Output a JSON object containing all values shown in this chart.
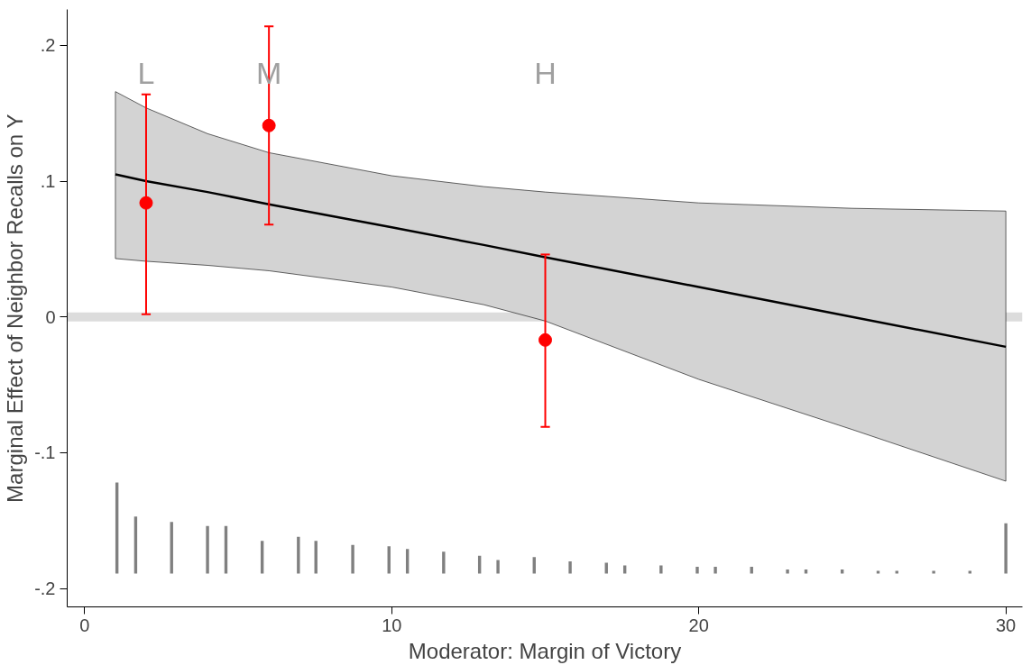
{
  "chart_data": {
    "type": "line",
    "xlabel": "Moderator: Margin of Victory",
    "ylabel": "Marginal Effect of Neighbor Recalls on Y",
    "xlim": [
      -0.57,
      30.54
    ],
    "ylim": [
      -0.2136,
      0.2265
    ],
    "xticks": [
      0,
      10,
      20,
      30
    ],
    "yticks": [
      {
        "value": -0.2,
        "label": "-.2"
      },
      {
        "value": -0.1,
        "label": "-.1"
      },
      0,
      {
        "value": 0.1,
        "label": ".1"
      },
      {
        "value": 0.2,
        "label": ".2"
      }
    ],
    "grid": false,
    "series": [
      {
        "color": "#000000",
        "x": [
          1,
          2,
          4,
          6,
          10,
          13,
          15,
          20,
          25,
          30
        ],
        "values": [
          0.105,
          0.1,
          0.092,
          0.083,
          0.066,
          0.053,
          0.044,
          0.022,
          0.0,
          -0.022
        ],
        "lower": [
          0.043,
          0.041,
          0.038,
          0.034,
          0.022,
          0.009,
          -0.003,
          -0.046,
          -0.083,
          -0.121
        ],
        "upper": [
          0.166,
          0.154,
          0.135,
          0.121,
          0.104,
          0.096,
          0.092,
          0.084,
          0.08,
          0.078
        ]
      },
      {
        "type": "scatter",
        "color": "#ff0000",
        "marker": "circle",
        "x": [
          2,
          6,
          15
        ],
        "values": [
          0.084,
          0.141,
          -0.017
        ],
        "errors": [
          [
            0.002,
            0.164
          ],
          [
            0.068,
            0.214
          ],
          [
            -0.081,
            0.046
          ]
        ]
      },
      {
        "type": "bar",
        "color": "#808080",
        "x": [
          1.05,
          1.66,
          2.83,
          4.0,
          4.6,
          5.78,
          6.96,
          7.53,
          8.73,
          9.91,
          10.51,
          11.69,
          12.86,
          13.46,
          14.64,
          15.81,
          16.99,
          17.59,
          18.77,
          19.95,
          20.54,
          21.72,
          22.89,
          23.49,
          24.67,
          25.84,
          26.45,
          27.65,
          28.83,
          30.0
        ],
        "base": [
          -0.189,
          -0.189,
          -0.189,
          -0.189,
          -0.189,
          -0.189,
          -0.189,
          -0.189,
          -0.189,
          -0.189,
          -0.189,
          -0.189,
          -0.189,
          -0.189,
          -0.189,
          -0.189,
          -0.189,
          -0.189,
          -0.189,
          -0.189,
          -0.189,
          -0.189,
          -0.189,
          -0.189,
          -0.189,
          -0.189,
          -0.189,
          -0.189,
          -0.189,
          -0.189
        ],
        "values": [
          0.067,
          0.042,
          0.038,
          0.035,
          0.035,
          0.024,
          0.027,
          0.024,
          0.021,
          0.02,
          0.018,
          0.016,
          0.013,
          0.01,
          0.012,
          0.009,
          0.008,
          0.006,
          0.006,
          0.005,
          0.005,
          0.005,
          0.003,
          0.003,
          0.003,
          0.002,
          0.002,
          0.002,
          0.002,
          0.037
        ]
      }
    ],
    "ref_lines": [
      {
        "axis": "y",
        "value": 0,
        "color": "#dcdcdc"
      }
    ],
    "annotations": [
      "L",
      "M",
      "H"
    ]
  }
}
